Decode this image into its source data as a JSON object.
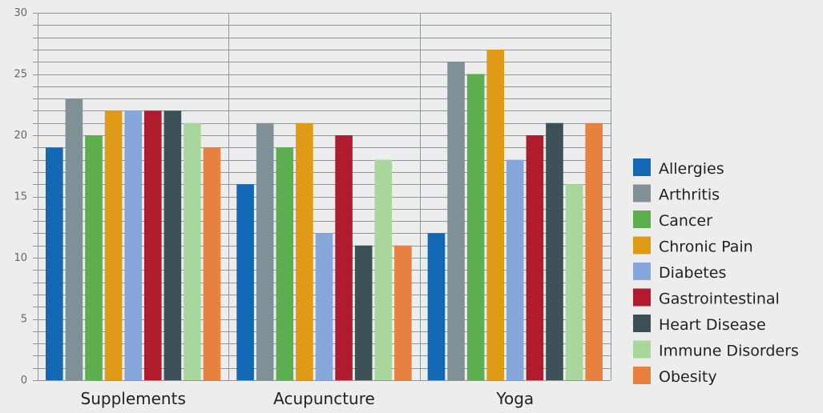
{
  "chart_data": {
    "type": "bar",
    "categories": [
      "Supplements",
      "Acupuncture",
      "Yoga"
    ],
    "series": [
      {
        "name": "Allergies",
        "color": "#1268b3",
        "values": [
          19,
          16,
          12
        ]
      },
      {
        "name": "Arthritis",
        "color": "#7f9196",
        "values": [
          23,
          21,
          26
        ]
      },
      {
        "name": "Cancer",
        "color": "#5cae4e",
        "values": [
          20,
          19,
          25
        ]
      },
      {
        "name": "Chronic Pain",
        "color": "#e09b16",
        "values": [
          22,
          21,
          27
        ]
      },
      {
        "name": "Diabetes",
        "color": "#86a7db",
        "values": [
          22,
          12,
          18
        ]
      },
      {
        "name": "Gastrointestinal",
        "color": "#b01b2d",
        "values": [
          22,
          20,
          20
        ]
      },
      {
        "name": "Heart Disease",
        "color": "#3c5058",
        "values": [
          22,
          11,
          21
        ]
      },
      {
        "name": "Immune Disorders",
        "color": "#a9d69c",
        "values": [
          21,
          18,
          16
        ]
      },
      {
        "name": "Obesity",
        "color": "#e8803f",
        "values": [
          19,
          11,
          21
        ]
      }
    ],
    "ylim": [
      0,
      30
    ],
    "yticks": [
      "0",
      "5",
      "10",
      "15",
      "20",
      "25",
      "30"
    ],
    "minor_grid_step": 1,
    "grid": true,
    "legend_position": "right"
  }
}
